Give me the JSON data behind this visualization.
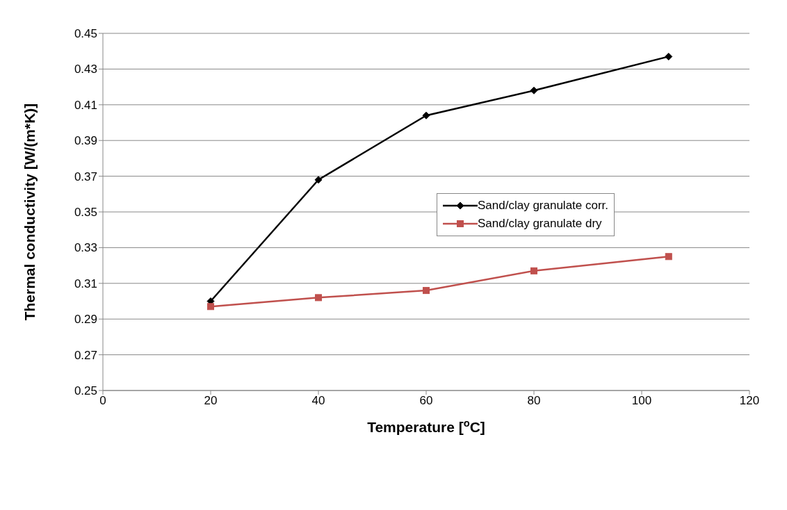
{
  "chart_data": {
    "type": "line",
    "xlabel": "Temperature  [$^{o}$C]",
    "ylabel": "Thermal conductivity  [W/(m*K)]",
    "x": [
      20,
      40,
      60,
      80,
      105
    ],
    "series": [
      {
        "name": "Sand/clay granulate corr.",
        "color": "#000000",
        "marker": "diamond",
        "values": [
          0.3,
          0.368,
          0.404,
          0.418,
          0.437
        ]
      },
      {
        "name": "Sand/clay granulate dry",
        "color": "#c0504d",
        "marker": "square",
        "values": [
          0.297,
          0.302,
          0.306,
          0.317,
          0.325
        ]
      }
    ],
    "xlim": [
      0,
      120
    ],
    "xticks": [
      0,
      20,
      40,
      60,
      80,
      100,
      120
    ],
    "ylim": [
      0.25,
      0.45
    ],
    "yticks": [
      0.25,
      0.27,
      0.29,
      0.31,
      0.33,
      0.35,
      0.37,
      0.39,
      0.41,
      0.43,
      0.45
    ],
    "grid": "y",
    "legend": "right",
    "line_style": "solid"
  }
}
